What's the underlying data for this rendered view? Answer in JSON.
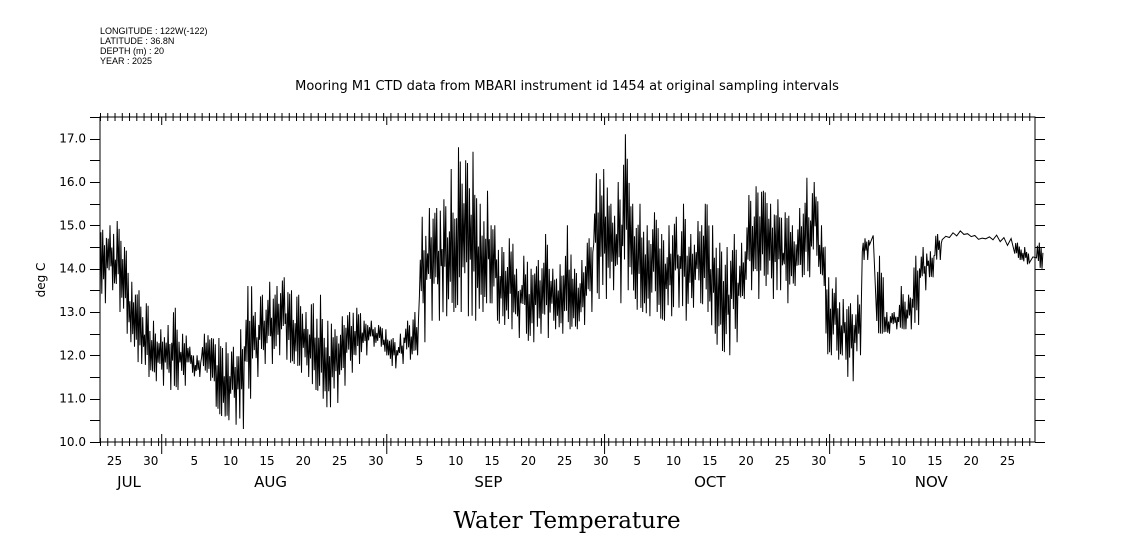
{
  "header": {
    "longitude": "LONGITUDE : 122W(-122)",
    "latitude": "LATITUDE : 36.8N",
    "depth": "DEPTH (m) : 20",
    "year": "YEAR : 2025"
  },
  "chart_data": {
    "type": "line",
    "title": "Mooring M1 CTD data from MBARI instrument id 1454 at original sampling intervals",
    "caption": "Water Temperature",
    "xlabel": "",
    "ylabel": "deg C",
    "ylim": [
      10.0,
      17.5
    ],
    "yticks": [
      "10.0",
      "11.0",
      "12.0",
      "13.0",
      "14.0",
      "15.0",
      "16.0",
      "17.0"
    ],
    "x_start": "2025-07-23",
    "x_end": "2025-11-30",
    "xtick_labels": [
      {
        "day": 2,
        "label": "25"
      },
      {
        "day": 7,
        "label": "30"
      },
      {
        "day": 13,
        "label": "5"
      },
      {
        "day": 18,
        "label": "10"
      },
      {
        "day": 23,
        "label": "15"
      },
      {
        "day": 28,
        "label": "20"
      },
      {
        "day": 33,
        "label": "25"
      },
      {
        "day": 38,
        "label": "30"
      },
      {
        "day": 44,
        "label": "5"
      },
      {
        "day": 49,
        "label": "10"
      },
      {
        "day": 54,
        "label": "15"
      },
      {
        "day": 59,
        "label": "20"
      },
      {
        "day": 64,
        "label": "25"
      },
      {
        "day": 69,
        "label": "30"
      },
      {
        "day": 74,
        "label": "5"
      },
      {
        "day": 79,
        "label": "10"
      },
      {
        "day": 84,
        "label": "15"
      },
      {
        "day": 89,
        "label": "20"
      },
      {
        "day": 94,
        "label": "25"
      },
      {
        "day": 99,
        "label": "30"
      },
      {
        "day": 105,
        "label": "5"
      },
      {
        "day": 110,
        "label": "10"
      },
      {
        "day": 115,
        "label": "15"
      },
      {
        "day": 120,
        "label": "20"
      },
      {
        "day": 125,
        "label": "25"
      }
    ],
    "month_starts": [
      9,
      40,
      70,
      101
    ],
    "month_labels": [
      {
        "day": 4,
        "label": "JUL"
      },
      {
        "day": 23.5,
        "label": "AUG"
      },
      {
        "day": 53.5,
        "label": "SEP"
      },
      {
        "day": 84,
        "label": "OCT"
      },
      {
        "day": 114.5,
        "label": "NOV"
      }
    ],
    "series": [
      {
        "name": "Water Temperature",
        "note": "daily min/max envelope, day 0 = Jul 23",
        "daily_min": [
          13.2,
          13.5,
          13.0,
          12.5,
          12.2,
          11.8,
          11.5,
          11.4,
          11.3,
          11.2,
          11.2,
          11.3,
          11.6,
          11.5,
          11.6,
          11.4,
          10.6,
          10.5,
          10.4,
          10.3,
          11.0,
          11.5,
          11.8,
          11.8,
          12.0,
          11.9,
          11.8,
          11.6,
          11.5,
          11.2,
          11.0,
          10.8,
          10.9,
          11.3,
          11.6,
          11.8,
          12.0,
          12.2,
          12.2,
          12.0,
          11.7,
          11.8,
          11.9,
          12.0,
          12.3,
          12.8,
          12.8,
          12.9,
          13.0,
          13.0,
          12.9,
          12.8,
          13.0,
          13.2,
          12.8,
          12.7,
          12.6,
          12.4,
          12.5,
          12.3,
          12.5,
          12.4,
          12.6,
          12.5,
          12.6,
          12.6,
          12.7,
          13.0,
          13.3,
          13.3,
          13.5,
          13.2,
          13.5,
          13.3,
          13.0,
          12.9,
          13.0,
          12.8,
          12.9,
          13.1,
          12.8,
          13.1,
          13.2,
          13.0,
          12.5,
          12.1,
          12.0,
          12.3,
          13.3,
          13.5,
          13.3,
          13.6,
          13.3,
          13.5,
          13.2,
          13.6,
          13.8,
          13.8,
          14.3,
          13.6,
          12.0,
          11.9,
          11.9,
          11.4,
          12.0,
          14.2,
          14.5,
          12.5,
          12.5,
          12.6,
          12.6,
          12.6,
          12.7,
          13.5,
          13.8,
          14.2,
          14.6,
          14.7,
          14.75,
          14.75,
          14.7,
          14.65,
          14.65,
          14.65,
          14.6,
          14.5,
          14.2,
          14.1,
          14.1,
          14.0
        ],
        "daily_max": [
          14.9,
          15.0,
          15.1,
          14.5,
          13.7,
          13.5,
          13.2,
          12.8,
          12.6,
          12.7,
          13.1,
          12.5,
          12.2,
          12.0,
          12.5,
          12.4,
          12.4,
          12.3,
          12.2,
          12.6,
          13.6,
          13.0,
          13.4,
          13.7,
          13.6,
          13.8,
          13.5,
          13.4,
          13.0,
          13.2,
          13.4,
          12.8,
          12.6,
          12.9,
          13.0,
          13.1,
          12.8,
          12.8,
          12.7,
          12.6,
          12.4,
          12.5,
          12.8,
          13.0,
          15.2,
          15.4,
          15.4,
          15.6,
          16.3,
          16.8,
          16.5,
          16.7,
          15.5,
          15.8,
          15.0,
          14.5,
          14.7,
          14.0,
          14.3,
          14.0,
          14.2,
          14.8,
          14.0,
          14.1,
          15.0,
          14.0,
          14.2,
          14.7,
          16.2,
          16.3,
          15.5,
          16.0,
          17.1,
          15.5,
          15.5,
          15.0,
          15.3,
          14.8,
          15.0,
          15.2,
          15.5,
          14.8,
          15.1,
          15.5,
          15.0,
          14.6,
          14.5,
          14.8,
          14.6,
          15.7,
          15.9,
          15.8,
          15.5,
          15.6,
          15.3,
          15.0,
          15.4,
          16.1,
          16.0,
          15.0,
          13.8,
          13.8,
          13.3,
          13.2,
          13.4,
          14.7,
          14.8,
          14.3,
          13.0,
          13.0,
          13.6,
          13.4,
          14.3,
          14.5,
          14.4,
          14.8,
          14.85,
          14.85,
          14.9,
          14.85,
          14.8,
          14.75,
          14.75,
          14.8,
          14.75,
          14.7,
          14.6,
          14.5,
          14.4,
          14.6
        ]
      }
    ]
  }
}
